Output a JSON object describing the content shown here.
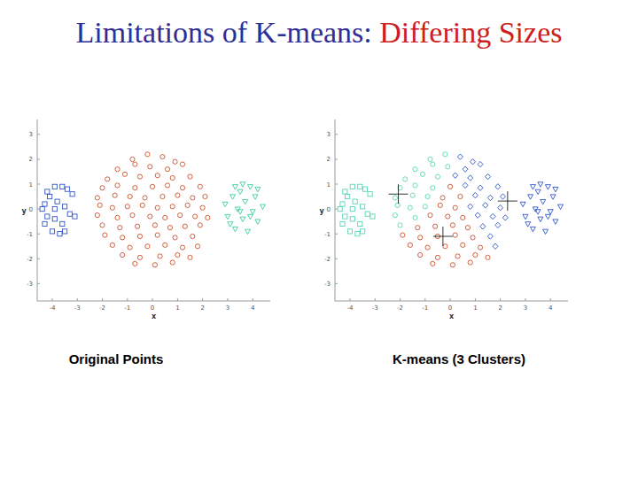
{
  "slide": {
    "title": {
      "text": "Limitations of K-means: ",
      "highlight": "Differing Sizes"
    }
  },
  "chart_data": [
    {
      "type": "scatter",
      "title": "Original Points",
      "x_label": "x",
      "y_label": "y",
      "xlim": [
        -4.6,
        4.7
      ],
      "ylim": [
        -3.7,
        3.6
      ],
      "xticks": [
        -4,
        -3,
        -2,
        -1,
        0,
        1,
        2,
        3,
        4
      ],
      "yticks": [
        -3,
        -2,
        -1,
        0,
        1,
        2,
        3
      ],
      "series": [
        {
          "color": "#2f55c8",
          "marker": "square",
          "x": [
            -4.3,
            -4.2,
            -4.4,
            -4.1,
            -3.9,
            -3.6,
            -3.4,
            -3.2,
            -3.8,
            -3.5,
            -3.9,
            -3.6,
            -3.3,
            -4.0,
            -3.7,
            -4.3,
            -3.1,
            -4.2,
            -3.5,
            -3.9
          ],
          "values": [
            0.2,
            -0.3,
            0,
            0.5,
            0.9,
            0.9,
            0.8,
            0.6,
            0.3,
            0.1,
            -0.4,
            -0.6,
            -0.2,
            -0.9,
            -1.0,
            -0.6,
            -0.3,
            0.7,
            -0.9,
            0
          ]
        },
        {
          "color": "#c9502c",
          "marker": "circle",
          "x": [
            -0.8,
            -0.2,
            0.4,
            0.9,
            -1.4,
            -0.7,
            -0.1,
            0.6,
            1.2,
            -1.8,
            -1.1,
            -0.5,
            0.2,
            0.8,
            1.5,
            -2.0,
            -1.4,
            -0.7,
            0,
            0.6,
            1.2,
            1.9,
            -2.2,
            -1.5,
            -0.9,
            -0.3,
            0.4,
            1.0,
            1.6,
            2.1,
            -2.1,
            -1.6,
            -1.0,
            -0.4,
            0.2,
            0.8,
            1.4,
            2.0,
            -2.2,
            -1.4,
            -0.8,
            -0.1,
            0.5,
            1.1,
            1.7,
            2.2,
            -2.0,
            -1.3,
            -0.6,
            0.1,
            0.7,
            1.3,
            1.9,
            -1.9,
            -1.2,
            -0.5,
            0.2,
            0.9,
            1.6,
            -1.6,
            -0.9,
            -0.2,
            0.5,
            1.2,
            1.8,
            -1.2,
            -0.5,
            0.3,
            1.0,
            1.5,
            -0.7,
            0.1,
            0.8
          ],
          "values": [
            2.0,
            2.2,
            2.1,
            1.9,
            1.6,
            1.8,
            1.7,
            1.6,
            1.8,
            1.2,
            1.4,
            1.3,
            1.35,
            1.25,
            1.3,
            0.85,
            0.95,
            0.85,
            0.9,
            0.95,
            0.85,
            0.9,
            0.45,
            0.55,
            0.5,
            0.45,
            0.5,
            0.55,
            0.45,
            0.5,
            0.15,
            0.05,
            0.1,
            0.15,
            0.05,
            0.1,
            0.15,
            0.05,
            -0.25,
            -0.35,
            -0.25,
            -0.3,
            -0.35,
            -0.25,
            -0.3,
            -0.35,
            -0.65,
            -0.75,
            -0.7,
            -0.65,
            -0.75,
            -0.7,
            -0.65,
            -1.05,
            -1.15,
            -1.1,
            -1.05,
            -1.15,
            -1.1,
            -1.45,
            -1.55,
            -1.5,
            -1.45,
            -1.55,
            -1.5,
            -1.85,
            -1.95,
            -1.9,
            -1.85,
            -1.95,
            -2.2,
            -2.25,
            -2.15
          ]
        },
        {
          "color": "#3ccf98",
          "marker": "triangle-down",
          "x": [
            2.9,
            3.0,
            3.2,
            3.3,
            3.4,
            3.5,
            3.6,
            3.7,
            3.8,
            3.9,
            4.0,
            4.1,
            4.2,
            4.4,
            3.3,
            3.6,
            3.1,
            3.9,
            3.5,
            4.2
          ],
          "values": [
            0.2,
            -0.3,
            0.5,
            -0.8,
            0,
            0.7,
            -0.4,
            0.3,
            -0.9,
            0.9,
            -0.1,
            0.5,
            -0.5,
            0.1,
            0.9,
            1.0,
            -0.6,
            -0.3,
            -0.1,
            0.8
          ]
        }
      ]
    },
    {
      "type": "scatter",
      "title": "K-means (3 Clusters)",
      "x_label": "x",
      "y_label": "y",
      "xlim": [
        -4.6,
        4.7
      ],
      "ylim": [
        -3.7,
        3.6
      ],
      "xticks": [
        -4,
        -3,
        -2,
        -1,
        0,
        1,
        2,
        3,
        4
      ],
      "yticks": [
        -3,
        -2,
        -1,
        0,
        1,
        2,
        3
      ],
      "series": [
        {
          "color": "#56d6b4",
          "marker": "square",
          "x": [
            -4.3,
            -4.2,
            -4.4,
            -4.1,
            -3.9,
            -3.6,
            -3.4,
            -3.2,
            -3.8,
            -3.5,
            -3.9,
            -3.6,
            -3.3,
            -4.0,
            -3.7,
            -4.3,
            -3.1,
            -4.2,
            -3.5,
            -3.9
          ],
          "values": [
            0.2,
            -0.3,
            0,
            0.5,
            0.9,
            0.9,
            0.8,
            0.6,
            0.3,
            0.1,
            -0.4,
            -0.6,
            -0.2,
            -0.9,
            -1.0,
            -0.6,
            -0.3,
            0.7,
            -0.9,
            0
          ]
        },
        {
          "color": "#56d6b4",
          "marker": "circle",
          "x": [
            -0.8,
            -0.2,
            -1.4,
            -0.7,
            -0.1,
            -1.8,
            -1.1,
            -0.5,
            -2.0,
            -1.4,
            -0.7,
            -2.2,
            -1.5,
            -0.9,
            -2.1,
            -1.6,
            -1.0,
            -2.2,
            -1.4,
            -2.0
          ],
          "values": [
            2.0,
            2.2,
            1.6,
            1.8,
            1.7,
            1.2,
            1.4,
            1.3,
            0.85,
            0.95,
            0.85,
            0.45,
            0.55,
            0.5,
            0.15,
            0.05,
            0.1,
            -0.25,
            -0.35,
            -0.65
          ]
        },
        {
          "color": "#c9502c",
          "marker": "circle",
          "x": [
            0,
            -0.3,
            0.4,
            -0.4,
            0.2,
            -0.8,
            -0.1,
            0.5,
            -1.3,
            -0.6,
            0.1,
            0.7,
            -1.9,
            -1.2,
            -0.5,
            0.2,
            0.9,
            -1.6,
            -0.9,
            -0.2,
            0.5,
            1.2,
            -1.2,
            -0.5,
            0.3,
            1.0,
            1.5,
            -0.7,
            0.1,
            0.8
          ],
          "values": [
            0.9,
            0.45,
            0.5,
            0.15,
            0.05,
            -0.25,
            -0.3,
            -0.35,
            -0.75,
            -0.7,
            -0.65,
            -0.75,
            -1.05,
            -1.15,
            -1.1,
            -1.05,
            -1.15,
            -1.45,
            -1.55,
            -1.5,
            -1.45,
            -1.55,
            -1.85,
            -1.95,
            -1.9,
            -1.85,
            -1.95,
            -2.2,
            -2.25,
            -2.15
          ]
        },
        {
          "color": "#2f55c8",
          "marker": "diamond",
          "x": [
            0.4,
            0.9,
            0.6,
            1.2,
            0.2,
            0.8,
            1.5,
            0.6,
            1.2,
            1.9,
            1.0,
            1.6,
            2.1,
            0.8,
            1.4,
            2.0,
            1.1,
            1.7,
            2.2,
            1.3,
            1.9,
            1.6,
            1.8
          ],
          "values": [
            2.1,
            1.9,
            1.6,
            1.8,
            1.35,
            1.25,
            1.3,
            0.95,
            0.85,
            0.9,
            0.55,
            0.45,
            0.5,
            0.1,
            0.15,
            0.05,
            -0.25,
            -0.3,
            -0.35,
            -0.7,
            -0.65,
            -1.1,
            -1.5
          ]
        },
        {
          "color": "#2f55c8",
          "marker": "triangle-down",
          "x": [
            2.9,
            3.0,
            3.2,
            3.3,
            3.4,
            3.5,
            3.6,
            3.7,
            3.8,
            3.9,
            4.0,
            4.1,
            4.2,
            4.4,
            3.3,
            3.6,
            3.1,
            3.9,
            3.5,
            4.2
          ],
          "values": [
            0.2,
            -0.3,
            0.5,
            -0.8,
            0,
            0.7,
            -0.4,
            0.3,
            -0.9,
            0.9,
            -0.1,
            0.5,
            -0.5,
            0.1,
            0.9,
            1.0,
            -0.6,
            -0.3,
            -0.1,
            0.8
          ]
        },
        {
          "color": "#000000",
          "marker": "plus",
          "x": [
            -2.07,
            2.29,
            -0.29
          ],
          "values": [
            0.6,
            0.32,
            -1.1
          ]
        }
      ]
    }
  ]
}
